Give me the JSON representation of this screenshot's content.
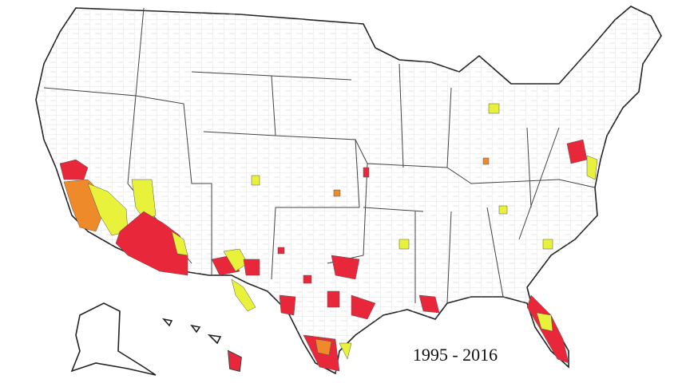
{
  "map": {
    "caption": "1995 - 2016"
  }
}
